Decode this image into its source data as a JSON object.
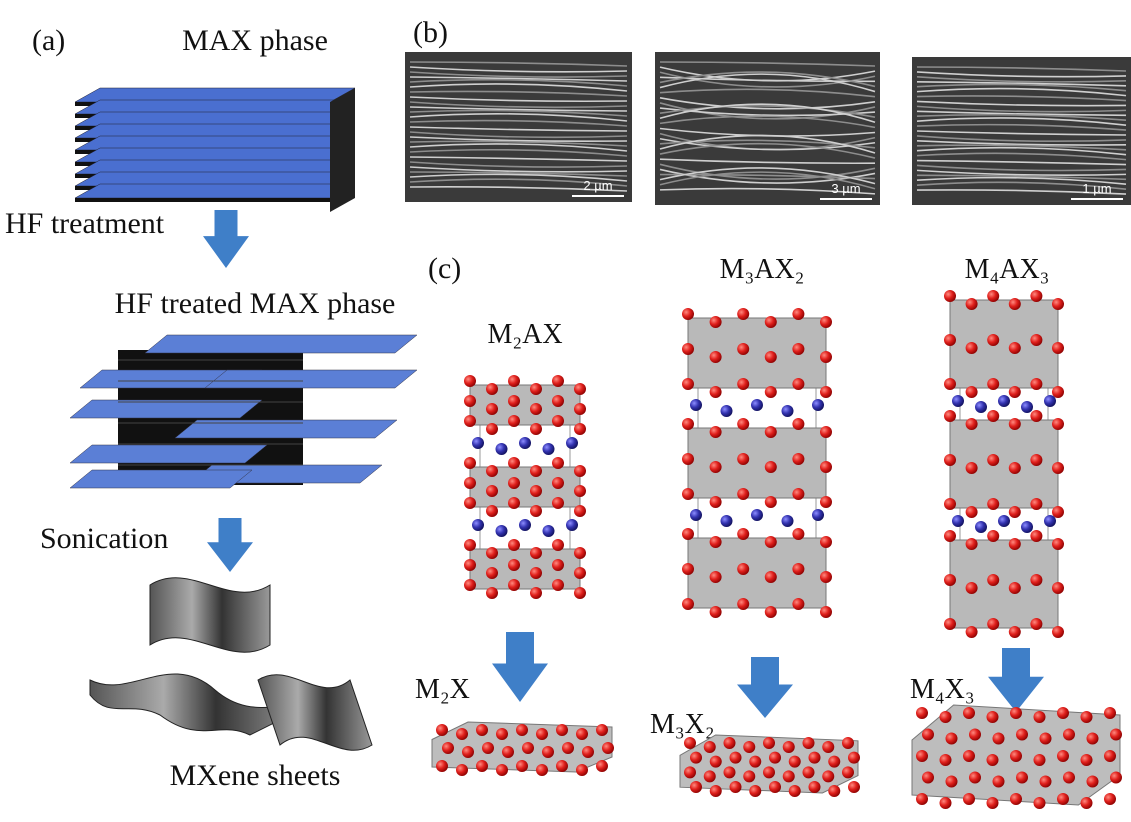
{
  "panel_a": {
    "label": "(a)",
    "title": "MAX phase",
    "step1": "HF treatment",
    "intermediate": "HF treated MAX phase",
    "step2": "Sonication",
    "product": "MXene sheets"
  },
  "panel_b": {
    "label": "(b)",
    "scale_bars": [
      "2 µm",
      "3 µm",
      "1 µm"
    ]
  },
  "panel_c": {
    "label": "(c)",
    "max_phases": [
      "M₂AX",
      "M₃AX₂",
      "M₄AX₃"
    ],
    "mxenes": [
      "M₂X",
      "M₃X₂",
      "M₄X₃"
    ]
  }
}
